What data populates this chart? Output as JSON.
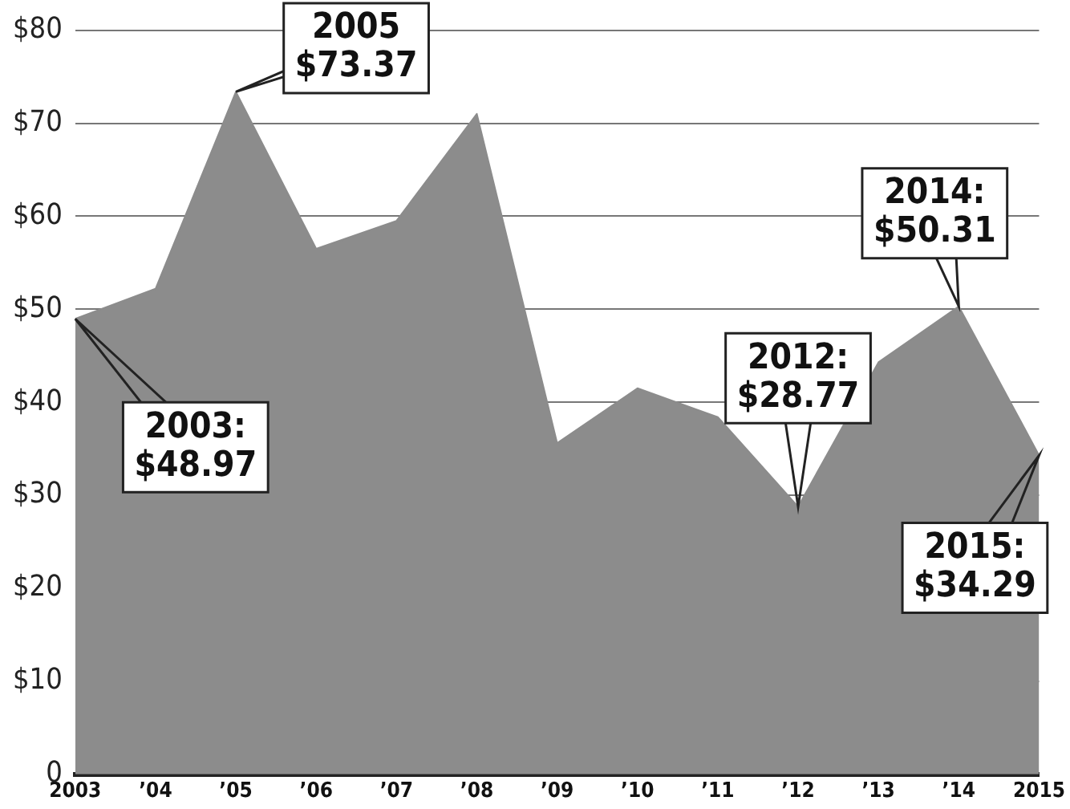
{
  "chart_data": {
    "type": "area",
    "categories": [
      "2003",
      "’04",
      "’05",
      "’06",
      "’07",
      "’08",
      "’09",
      "’10",
      "’11",
      "’12",
      "’13",
      "’14",
      "2015"
    ],
    "values": [
      48.97,
      52.2,
      73.37,
      56.5,
      59.5,
      71,
      35.6,
      41.5,
      38.4,
      28.77,
      44.3,
      50.31,
      34.29
    ],
    "color": "#8c8c8c",
    "ylim": [
      0,
      80
    ],
    "yticks": [
      {
        "value": 0,
        "label": "0"
      },
      {
        "value": 10,
        "label": "$10"
      },
      {
        "value": 20,
        "label": "$20"
      },
      {
        "value": 30,
        "label": "$30"
      },
      {
        "value": 40,
        "label": "$40"
      },
      {
        "value": 50,
        "label": "$50"
      },
      {
        "value": 60,
        "label": "$60"
      },
      {
        "value": 70,
        "label": "$70"
      },
      {
        "value": 80,
        "label": "$80"
      }
    ],
    "grid": "y",
    "annotations": [
      {
        "text": "2003:\n$48.97",
        "x": "2003",
        "y": 48.97
      },
      {
        "text": "2005\n$73.37",
        "x": "’05",
        "y": 73.37
      },
      {
        "text": "2012:\n$28.77",
        "x": "’12",
        "y": 28.77
      },
      {
        "text": "2014:\n$50.31",
        "x": "’14",
        "y": 50.31
      },
      {
        "text": "2015:\n$34.29",
        "x": "2015",
        "y": 34.29
      }
    ]
  }
}
